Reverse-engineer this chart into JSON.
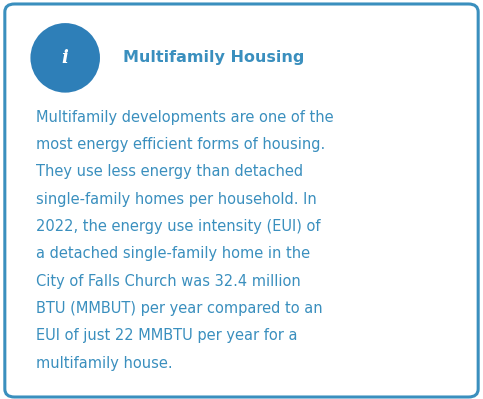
{
  "title": "Multifamily Housing",
  "body_text": "Multifamily developments are one of the most energy efficient forms of housing. They use less energy than detached single-family homes per household. In 2022, the energy use intensity (EUI) of a detached single-family home in the City of Falls Church was 32.4 million BTU (MMBUT) per year compared to an EUI of just 22 MMBTU per year for a multifamily house.",
  "body_lines": [
    "Multifamily developments are one of the",
    "most energy efficient forms of housing.",
    "They use less energy than detached",
    "single-family homes per household. In",
    "2022, the energy use intensity (EUI) of",
    "a detached single-family home in the",
    "City of Falls Church was 32.4 million",
    "BTU (MMBUT) per year compared to an",
    "EUI of just 22 MMBTU per year for a",
    "multifamily house."
  ],
  "text_color": "#3a8fbe",
  "border_color": "#3a8fbe",
  "background_color": "#ffffff",
  "icon_bg_color": "#2e7fb8",
  "icon_text_color": "#ffffff",
  "title_fontsize": 11.5,
  "body_fontsize": 10.5,
  "icon_fontsize": 13,
  "fig_width": 4.83,
  "fig_height": 3.99,
  "dpi": 100
}
